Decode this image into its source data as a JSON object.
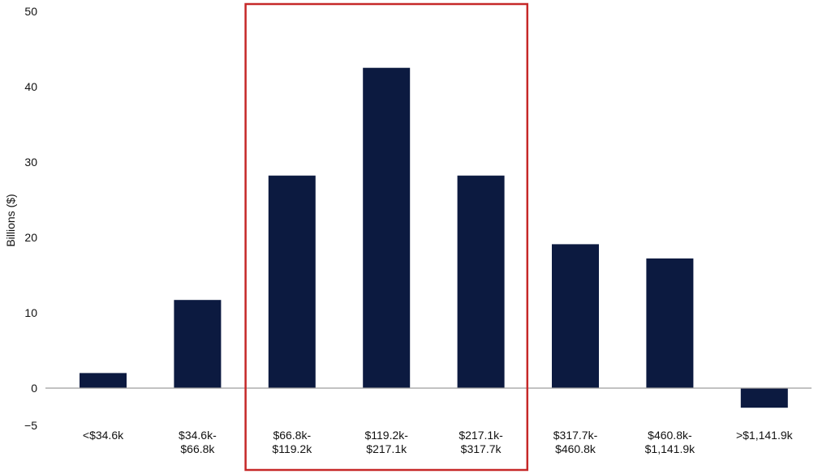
{
  "chart_data": {
    "type": "bar",
    "ylabel": "Billions ($)",
    "ylim": [
      -5,
      50
    ],
    "yticks": [
      -5,
      0,
      10,
      20,
      30,
      40,
      50
    ],
    "ytick_labels": [
      "−5",
      "0",
      "10",
      "20",
      "30",
      "40",
      "50"
    ],
    "categories": [
      "<$34.6k",
      "$34.6k- $66.8k",
      "$66.8k- $119.2k",
      "$119.2k- $217.1k",
      "$217.1k- $317.7k",
      "$317.7k- $460.8k",
      "$460.8k- $1,141.9k",
      ">$1,141.9k"
    ],
    "category_lines": [
      [
        "<$34.6k"
      ],
      [
        "$34.6k-",
        "$66.8k"
      ],
      [
        "$66.8k-",
        "$119.2k"
      ],
      [
        "$119.2k-",
        "$217.1k"
      ],
      [
        "$217.1k-",
        "$317.7k"
      ],
      [
        "$317.7k-",
        "$460.8k"
      ],
      [
        "$460.8k-",
        "$1,141.9k"
      ],
      [
        ">$1,141.9k"
      ]
    ],
    "values": [
      2,
      11.7,
      28.2,
      42.5,
      28.2,
      19.1,
      17.2,
      -2.6
    ],
    "highlight": {
      "categories": [
        "$66.8k- $119.2k",
        "$119.2k- $217.1k",
        "$217.1k- $317.7k"
      ]
    },
    "colors": {
      "bar": "#0c1a40",
      "highlight_box": "#c62828",
      "zero_line": "#9e9e9e"
    },
    "grid": false,
    "legend": "none"
  }
}
